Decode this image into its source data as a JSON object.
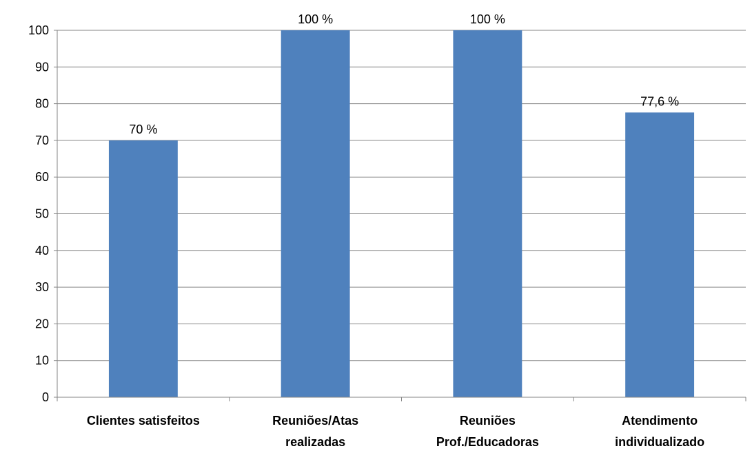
{
  "chart_data": {
    "type": "bar",
    "categories": [
      [
        "Clientes satisfeitos"
      ],
      [
        "Reuniões/Atas",
        "realizadas"
      ],
      [
        "Reuniões",
        "Prof./Educadoras"
      ],
      [
        "Atendimento",
        "individualizado"
      ]
    ],
    "values": [
      70,
      100,
      100,
      77.6
    ],
    "data_labels": [
      "70 %",
      "100 %",
      "100 %",
      "77,6 %"
    ],
    "title": "",
    "xlabel": "",
    "ylabel": "",
    "ylim": [
      0,
      100
    ],
    "yticks": [
      0,
      10,
      20,
      30,
      40,
      50,
      60,
      70,
      80,
      90,
      100
    ],
    "grid": true,
    "legend": "none",
    "colors": {
      "bar": "#4F81BD",
      "grid": "#868686",
      "axis": "#868686"
    }
  }
}
